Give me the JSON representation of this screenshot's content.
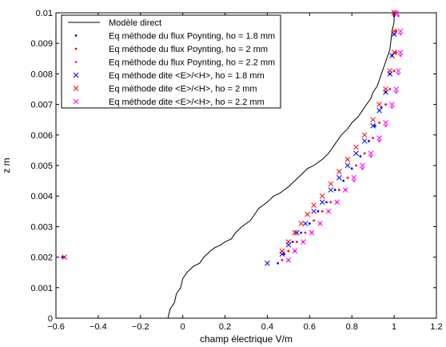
{
  "chart_data": {
    "type": "line",
    "title": "",
    "xlabel": "champ électrique V/m",
    "ylabel": "z m",
    "xlim": [
      -0.6,
      1.2
    ],
    "ylim": [
      0,
      0.01
    ],
    "xticks": [
      -0.6,
      -0.4,
      -0.2,
      0,
      0.2,
      0.4,
      0.6,
      0.8,
      1,
      1.2
    ],
    "xtick_labels": [
      "−0.6",
      "−0.4",
      "−0.2",
      "0",
      "0.2",
      "0.4",
      "0.6",
      "0.8",
      "1",
      "1.2"
    ],
    "yticks": [
      0,
      0.001,
      0.002,
      0.003,
      0.004,
      0.005,
      0.006,
      0.007,
      0.008,
      0.009,
      0.01
    ],
    "ytick_labels": [
      "0",
      "0.001",
      "0.002",
      "0.003",
      "0.004",
      "0.005",
      "0.006",
      "0.007",
      "0.008",
      "0.009",
      "0.01"
    ],
    "grid": false,
    "legend_position": "top-left",
    "series": [
      {
        "name": "Modèle direct",
        "marker": "line",
        "color": "#000000",
        "x": [
          -0.07,
          -0.06,
          -0.04,
          -0.03,
          -0.01,
          0.0,
          0.02,
          0.05,
          0.08,
          0.1,
          0.13,
          0.15,
          0.18,
          0.2,
          0.23,
          0.25,
          0.28,
          0.3,
          0.32,
          0.34,
          0.36,
          0.4,
          0.43,
          0.46,
          0.48,
          0.5,
          0.53,
          0.56,
          0.59,
          0.62,
          0.66,
          0.69,
          0.72,
          0.75,
          0.78,
          0.8,
          0.83,
          0.85,
          0.87,
          0.89,
          0.9,
          0.92,
          0.93,
          0.94,
          0.95,
          0.96,
          0.97,
          0.98,
          0.985,
          0.99,
          1.0,
          1.0
        ],
        "y": [
          0.0,
          0.0003,
          0.0005,
          0.0008,
          0.001,
          0.0013,
          0.0015,
          0.0017,
          0.0018,
          0.002,
          0.0022,
          0.0023,
          0.0024,
          0.0025,
          0.0026,
          0.0028,
          0.003,
          0.0031,
          0.0032,
          0.0034,
          0.0036,
          0.0038,
          0.004,
          0.0041,
          0.0042,
          0.0043,
          0.0045,
          0.0047,
          0.0049,
          0.005,
          0.0052,
          0.0054,
          0.0057,
          0.006,
          0.0062,
          0.0064,
          0.0066,
          0.0068,
          0.007,
          0.0072,
          0.0074,
          0.0076,
          0.0078,
          0.008,
          0.0082,
          0.0084,
          0.0086,
          0.0088,
          0.0091,
          0.0094,
          0.0097,
          0.01
        ]
      },
      {
        "name": "Eq méthode du flux Poynting, ho = 1.8 mm",
        "marker": "dot",
        "color": "#0000ff",
        "x": [
          -0.57,
          0.45,
          0.48,
          0.52,
          0.56,
          0.6,
          0.64,
          0.68,
          0.72,
          0.76,
          0.8,
          0.84,
          0.88,
          0.91,
          0.94,
          0.96,
          0.98,
          0.99,
          1.0,
          1.0
        ],
        "y": [
          0.002,
          0.0018,
          0.0021,
          0.0025,
          0.0028,
          0.0031,
          0.0035,
          0.0038,
          0.0042,
          0.0045,
          0.0049,
          0.0053,
          0.0058,
          0.0063,
          0.0069,
          0.0074,
          0.008,
          0.0086,
          0.0093,
          0.0099
        ]
      },
      {
        "name": "Eq méthode du flux Poynting, ho = 2 mm",
        "marker": "dot",
        "color": "#ff0000",
        "x": [
          -0.56,
          0.47,
          0.5,
          0.54,
          0.58,
          0.62,
          0.66,
          0.7,
          0.74,
          0.78,
          0.82,
          0.86,
          0.9,
          0.93,
          0.96,
          0.98,
          1.0,
          1.01,
          1.01,
          1.0
        ],
        "y": [
          0.002,
          0.0019,
          0.0022,
          0.0025,
          0.0028,
          0.0032,
          0.0035,
          0.0038,
          0.0042,
          0.0046,
          0.005,
          0.0054,
          0.0059,
          0.0064,
          0.007,
          0.0075,
          0.0081,
          0.0087,
          0.0094,
          0.01
        ]
      },
      {
        "name": "Eq méthode du flux Poynting, ho = 2.2 mm",
        "marker": "dot",
        "color": "#ff00ff",
        "x": [
          -0.56,
          0.5,
          0.53,
          0.57,
          0.61,
          0.65,
          0.69,
          0.73,
          0.77,
          0.81,
          0.85,
          0.89,
          0.93,
          0.96,
          0.99,
          1.01,
          1.02,
          1.03,
          1.03,
          1.02
        ],
        "y": [
          0.002,
          0.0019,
          0.0022,
          0.0025,
          0.0028,
          0.0031,
          0.0035,
          0.0038,
          0.0042,
          0.0045,
          0.0049,
          0.0053,
          0.0058,
          0.0063,
          0.0069,
          0.0074,
          0.008,
          0.0086,
          0.0093,
          0.0099
        ]
      },
      {
        "name": "Eq méthode dite <E>/<H>, ho = 1.8 mm",
        "marker": "x",
        "color": "#0000ff",
        "x": [
          0.4,
          0.47,
          0.5,
          0.54,
          0.58,
          0.62,
          0.66,
          0.7,
          0.74,
          0.78,
          0.82,
          0.86,
          0.9,
          0.93,
          0.96,
          0.98,
          0.99,
          1.0,
          1.0
        ],
        "y": [
          0.0018,
          0.0021,
          0.0024,
          0.0028,
          0.0031,
          0.0035,
          0.0038,
          0.0042,
          0.0046,
          0.005,
          0.0054,
          0.0058,
          0.0063,
          0.0068,
          0.0074,
          0.008,
          0.0086,
          0.0093,
          0.01
        ]
      },
      {
        "name": "Eq méthode dite <E>/<H>, ho = 2 mm",
        "marker": "x",
        "color": "#ff0000",
        "x": [
          -0.56,
          0.47,
          0.5,
          0.53,
          0.56,
          0.59,
          0.62,
          0.66,
          0.7,
          0.74,
          0.78,
          0.82,
          0.86,
          0.9,
          0.93,
          0.96,
          0.98,
          1.0,
          1.0,
          1.0
        ],
        "y": [
          0.002,
          0.0022,
          0.0025,
          0.0028,
          0.0031,
          0.0034,
          0.0037,
          0.004,
          0.0044,
          0.0048,
          0.0052,
          0.0056,
          0.006,
          0.0065,
          0.007,
          0.0075,
          0.0081,
          0.0087,
          0.0094,
          0.01
        ]
      },
      {
        "name": "Eq méthode dite <E>/<H>, ho = 2.2 mm",
        "marker": "x",
        "color": "#ff00ff",
        "x": [
          0.5,
          0.53,
          0.57,
          0.61,
          0.65,
          0.69,
          0.73,
          0.77,
          0.81,
          0.85,
          0.89,
          0.93,
          0.96,
          0.99,
          1.01,
          1.02,
          1.03,
          1.03,
          1.01
        ],
        "y": [
          0.0019,
          0.0022,
          0.0025,
          0.0028,
          0.0031,
          0.0035,
          0.0038,
          0.0042,
          0.0046,
          0.005,
          0.0054,
          0.0059,
          0.0064,
          0.007,
          0.0075,
          0.0081,
          0.0087,
          0.0094,
          0.01
        ]
      }
    ]
  }
}
